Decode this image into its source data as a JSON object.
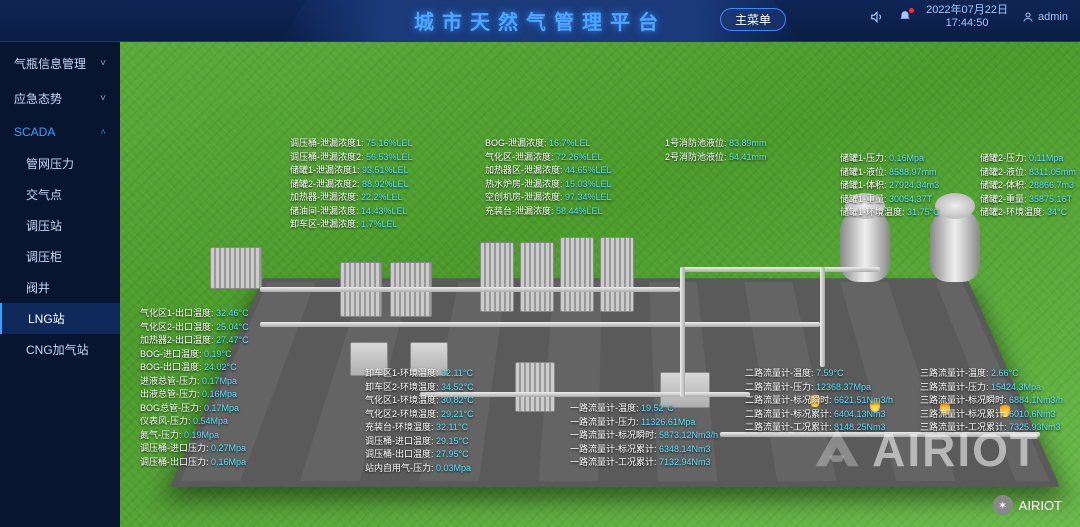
{
  "header": {
    "title": "城市天然气管理平台",
    "main_menu": "主菜单",
    "date": "2022年07月22日",
    "time": "17:44:50",
    "user": "admin"
  },
  "sidebar": {
    "items": [
      {
        "label": "气瓶信息管理",
        "expanded": false
      },
      {
        "label": "应急态势",
        "expanded": false
      },
      {
        "label": "SCADA",
        "expanded": true,
        "active": true
      }
    ],
    "sub": [
      {
        "label": "管网压力"
      },
      {
        "label": "交气点"
      },
      {
        "label": "调压站"
      },
      {
        "label": "调压柜"
      },
      {
        "label": "阀井"
      },
      {
        "label": "LNG站",
        "active": true
      },
      {
        "label": "CNG加气站"
      }
    ]
  },
  "labels": {
    "top_left": [
      {
        "k": "调压桶-泄漏浓度1:",
        "v": "75.16%LEL"
      },
      {
        "k": "调压桶-泄漏浓度2:",
        "v": "56.53%LEL"
      },
      {
        "k": "储罐1-泄漏浓度1:",
        "v": "93.51%LEL"
      },
      {
        "k": "储罐2-泄漏浓度2:",
        "v": "88.92%LEL"
      },
      {
        "k": "加热器-泄漏浓度:",
        "v": "22.2%LEL"
      },
      {
        "k": "储油间-泄漏浓度:",
        "v": "14.43%LEL"
      },
      {
        "k": "卸车区-泄漏浓度:",
        "v": "1.7%LEL"
      }
    ],
    "top_mid": [
      {
        "k": "BOG-泄漏浓度:",
        "v": "16.7%LEL"
      },
      {
        "k": "气化区-泄漏浓度:",
        "v": "72.26%LEL"
      },
      {
        "k": "加热器区-泄漏浓度:",
        "v": "44.65%LEL"
      },
      {
        "k": "热水炉房-泄漏浓度:",
        "v": "15.03%LEL"
      },
      {
        "k": "空创机房-泄漏浓度:",
        "v": "97.34%LEL"
      },
      {
        "k": "充装台-泄漏浓度:",
        "v": "58.44%LEL"
      }
    ],
    "top_right1": [
      {
        "k": "1号消防池液位:",
        "v": "83.89mm"
      },
      {
        "k": "2号消防池液位:",
        "v": "54.41mm"
      }
    ],
    "tank1": [
      {
        "k": "储罐1-压力:",
        "v": "0.16Mpa"
      },
      {
        "k": "储罐1-液位:",
        "v": "8588.97mm"
      },
      {
        "k": "储罐1-体积:",
        "v": "27924.34m3"
      },
      {
        "k": "储罐1-重量:",
        "v": "30054.37T"
      },
      {
        "k": "储罐1-环境温度:",
        "v": "31.75°C"
      }
    ],
    "tank2": [
      {
        "k": "储罐2-压力:",
        "v": "0.11Mpa"
      },
      {
        "k": "储罐2-液位:",
        "v": "8311.05mm"
      },
      {
        "k": "储罐2-体积:",
        "v": "28866.7m3"
      },
      {
        "k": "储罐2-重量:",
        "v": "35875.16T"
      },
      {
        "k": "储罐2-环境温度:",
        "v": "34°C"
      }
    ],
    "left_mid": [
      {
        "k": "气化区1-出口温度:",
        "v": "32.46°C"
      },
      {
        "k": "气化区2-出口温度:",
        "v": "25.04°C"
      },
      {
        "k": "加热器2-出口温度:",
        "v": "27.47°C"
      },
      {
        "k": "BOG-进口温度:",
        "v": "0.19°C"
      },
      {
        "k": "BOG-出口温度:",
        "v": "24.02°C"
      },
      {
        "k": "进液总管-压力:",
        "v": "0.17Mpa"
      },
      {
        "k": "出液总管-压力:",
        "v": "0.16Mpa"
      },
      {
        "k": "BOG总管-压力:",
        "v": "0.17Mpa"
      },
      {
        "k": "仪表风-压力:",
        "v": "0.54Mpa"
      },
      {
        "k": "氮气-压力:",
        "v": "0.19Mpa"
      },
      {
        "k": "调压桶-进口压力:",
        "v": "0.27Mpa"
      },
      {
        "k": "调压桶-出口压力:",
        "v": "0.16Mpa"
      }
    ],
    "center_bot": [
      {
        "k": "卸车区1-环境温度:",
        "v": "32.11°C"
      },
      {
        "k": "卸车区2-环境温度:",
        "v": "34.52°C"
      },
      {
        "k": "气化区1-环境温度:",
        "v": "30.82°C"
      },
      {
        "k": "气化区2-环境温度:",
        "v": "29.21°C"
      },
      {
        "k": "充装台-环境温度:",
        "v": "32.11°C"
      },
      {
        "k": "调压桶-进口温度:",
        "v": "29.15°C"
      },
      {
        "k": "调压桶-出口温度:",
        "v": "27.95°C"
      },
      {
        "k": "站内自用气-压力:",
        "v": "0.03Mpa"
      }
    ],
    "flow1": [
      {
        "k": "一路流量计-温度:",
        "v": "19.52°C"
      },
      {
        "k": "一路流量计-压力:",
        "v": "11326.61Mpa"
      },
      {
        "k": "一路流量计-标况瞬时:",
        "v": "5873.12Nm3/h"
      },
      {
        "k": "一路流量计-标况累计:",
        "v": "6348.14Nm3"
      },
      {
        "k": "一路流量计-工况累计:",
        "v": "7132.94Nm3"
      }
    ],
    "flow2": [
      {
        "k": "二路流量计-温度:",
        "v": "7.59°C"
      },
      {
        "k": "二路流量计-压力:",
        "v": "12368.37Mpa"
      },
      {
        "k": "二路流量计-标况瞬时:",
        "v": "6621.51Nm3/h"
      },
      {
        "k": "二路流量计-标况累计:",
        "v": "6404.13Nm3"
      },
      {
        "k": "二路流量计-工况累计:",
        "v": "8148.25Nm3"
      }
    ],
    "flow3": [
      {
        "k": "三路流量计-温度:",
        "v": "2.66°C"
      },
      {
        "k": "三路流量计-压力:",
        "v": "15424.3Mpa"
      },
      {
        "k": "三路流量计-标况瞬时:",
        "v": "6884.1Nm3/h"
      },
      {
        "k": "三路流量计-标况累计:",
        "v": "6010.6Nm3"
      },
      {
        "k": "三路流量计-工况累计:",
        "v": "7325.93Nm3"
      }
    ]
  },
  "watermark": "AIRIOT",
  "wechat": "AIRIOT",
  "colors": {
    "bg": "#0a1a3a",
    "accent": "#3aa0ff",
    "value": "#5ae0ff",
    "grass": "#5aaa3a",
    "platform": "#5a5a5a"
  }
}
